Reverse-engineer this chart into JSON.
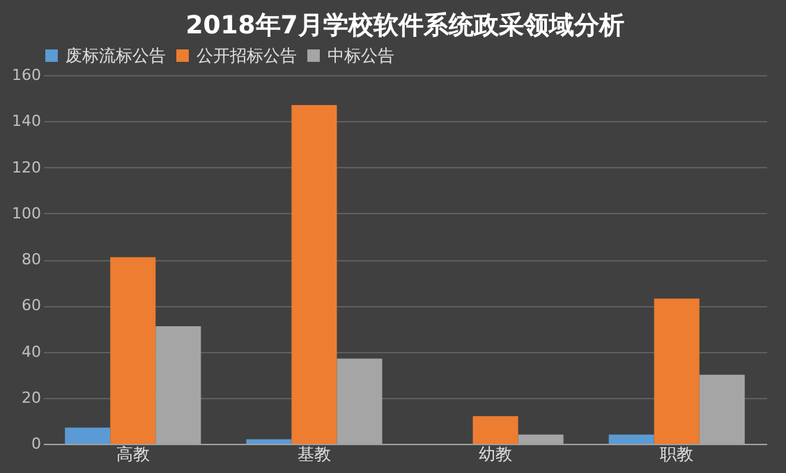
{
  "chart_data": {
    "type": "bar",
    "title": "2018年7月学校软件系统政采领域分析",
    "categories": [
      "高教",
      "基教",
      "幼教",
      "职教"
    ],
    "series": [
      {
        "name": "废标流标公告",
        "color": "#5b9bd5",
        "values": [
          7,
          2,
          0,
          4
        ]
      },
      {
        "name": "公开招标公告",
        "color": "#ed7d31",
        "values": [
          81,
          147,
          12,
          63
        ]
      },
      {
        "name": "中标公告",
        "color": "#a5a5a5",
        "values": [
          51,
          37,
          4,
          30
        ]
      }
    ],
    "ylim": [
      0,
      160
    ],
    "yticks": [
      0,
      20,
      40,
      60,
      80,
      100,
      120,
      140,
      160
    ],
    "grid": "y",
    "legend": "top"
  }
}
